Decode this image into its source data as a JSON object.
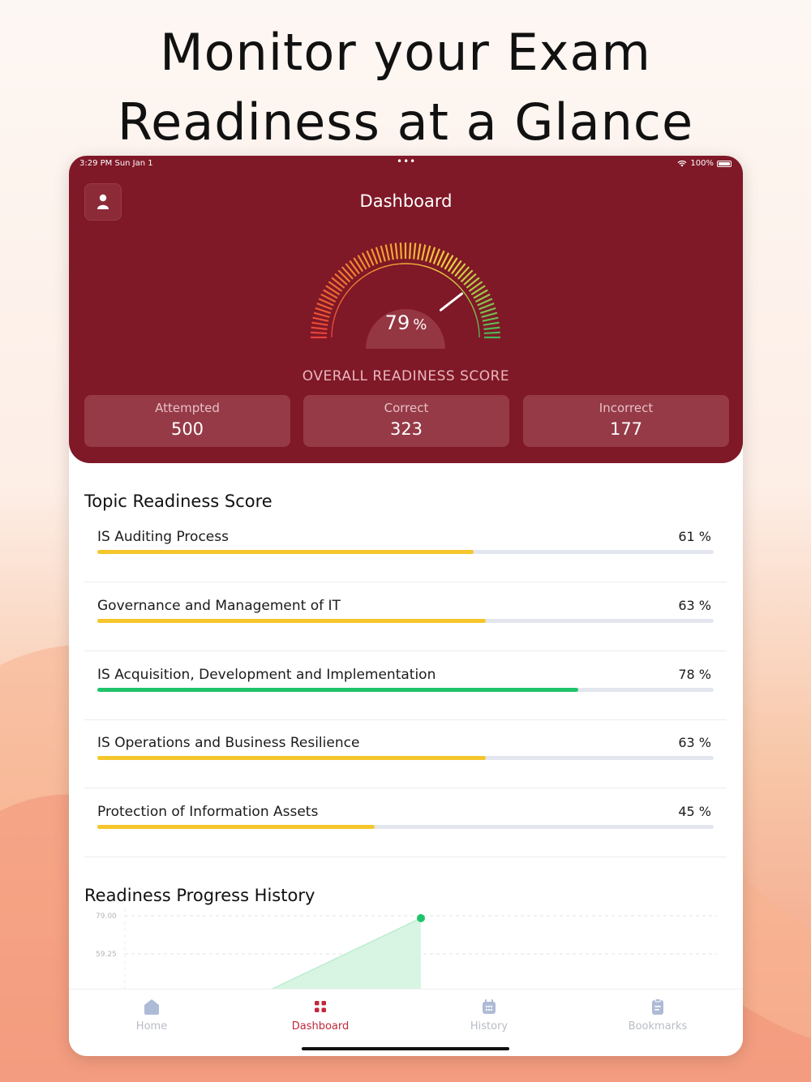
{
  "headline": {
    "line1": "Monitor your Exam",
    "line2": "Readiness at a Glance"
  },
  "status_bar": {
    "time": "3:29 PM  Sun Jan 1",
    "dots": "•••",
    "battery": "100%"
  },
  "header": {
    "title": "Dashboard"
  },
  "gauge": {
    "score": 79,
    "score_text": "79",
    "unit": "%",
    "label": "OVERALL READINESS SCORE"
  },
  "stats": [
    {
      "label": "Attempted",
      "value": "500"
    },
    {
      "label": "Correct",
      "value": "323"
    },
    {
      "label": "Incorrect",
      "value": "177"
    }
  ],
  "topics_section": {
    "title": "Topic Readiness Score"
  },
  "topics": [
    {
      "name": "IS Auditing Process",
      "percent": 61,
      "percent_text": "61",
      "unit": "%",
      "color": "#f5c62c"
    },
    {
      "name": "Governance and Management of IT",
      "percent": 63,
      "percent_text": "63",
      "unit": "%",
      "color": "#f5c62c"
    },
    {
      "name": "IS Acquisition, Development and Implementation",
      "percent": 78,
      "percent_text": "78",
      "unit": "%",
      "color": "#1fc36a"
    },
    {
      "name": "IS Operations and Business Resilience",
      "percent": 63,
      "percent_text": "63",
      "unit": "%",
      "color": "#f5c62c"
    },
    {
      "name": "Protection of Information Assets",
      "percent": 45,
      "percent_text": "45",
      "unit": "%",
      "color": "#f5c62c"
    }
  ],
  "history_section": {
    "title": "Readiness Progress History"
  },
  "history_chart": {
    "y_ticks": [
      "79.00",
      "59.25"
    ],
    "point_value": 79
  },
  "tabs": [
    {
      "label": "Home",
      "icon": "home-icon",
      "active": false
    },
    {
      "label": "Dashboard",
      "icon": "dashboard-grid-icon",
      "active": true
    },
    {
      "label": "History",
      "icon": "history-icon",
      "active": false
    },
    {
      "label": "Bookmarks",
      "icon": "bookmark-icon",
      "active": false
    }
  ],
  "colors": {
    "brand": "#7f1827",
    "accent_active": "#c0283c",
    "good": "#1fc36a",
    "warn": "#f5c62c"
  }
}
